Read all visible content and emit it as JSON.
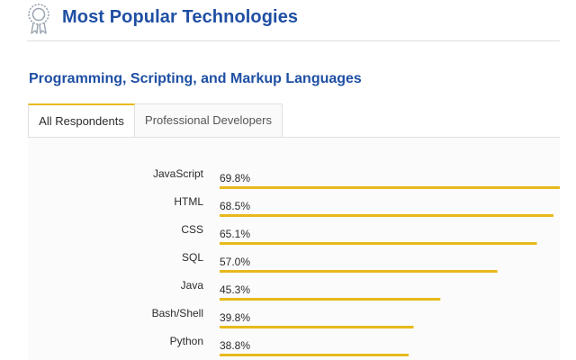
{
  "header": {
    "title": "Most Popular Technologies",
    "icon": "award-ribbon-icon",
    "title_color": "#1f4fa3"
  },
  "section": {
    "title": "Programming, Scripting, and Markup Languages"
  },
  "tabs": [
    {
      "label": "All Respondents",
      "active": true
    },
    {
      "label": "Professional Developers",
      "active": false
    }
  ],
  "chart_data": {
    "type": "bar",
    "orientation": "horizontal",
    "categories": [
      "JavaScript",
      "HTML",
      "CSS",
      "SQL",
      "Java",
      "Bash/Shell",
      "Python"
    ],
    "values": [
      69.8,
      68.5,
      65.1,
      57.0,
      45.3,
      39.8,
      38.8
    ],
    "value_labels": [
      "69.8%",
      "68.5%",
      "65.1%",
      "57.0%",
      "45.3%",
      "39.8%",
      "38.8%"
    ],
    "unit": "%",
    "xlim": [
      0,
      69.8
    ],
    "bar_color": "#e8b91c",
    "grid": false,
    "legend": "none"
  }
}
